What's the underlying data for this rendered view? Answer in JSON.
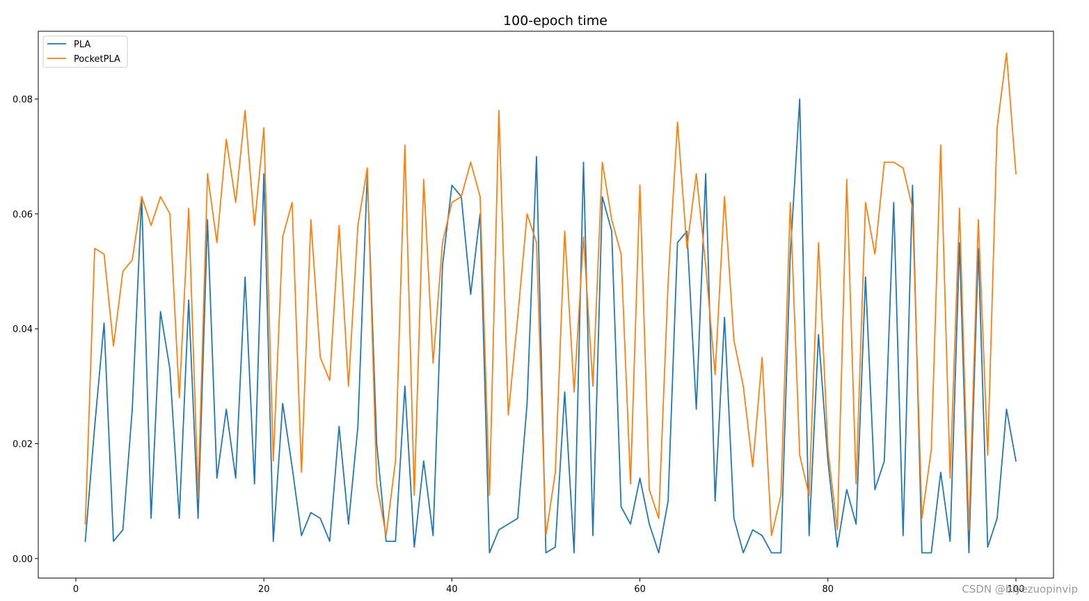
{
  "chart_data": {
    "type": "line",
    "title": "100-epoch time",
    "xlabel": "",
    "ylabel": "",
    "xlim": [
      -4,
      104
    ],
    "ylim": [
      -0.0034,
      0.0918
    ],
    "xticks": [
      0,
      20,
      40,
      60,
      80,
      100
    ],
    "yticks": [
      0.0,
      0.02,
      0.04,
      0.06,
      0.08
    ],
    "ytick_labels": [
      "0.00",
      "0.02",
      "0.04",
      "0.06",
      "0.08"
    ],
    "grid": false,
    "legend_position": "top-left",
    "x": [
      1,
      2,
      3,
      4,
      5,
      6,
      7,
      8,
      9,
      10,
      11,
      12,
      13,
      14,
      15,
      16,
      17,
      18,
      19,
      20,
      21,
      22,
      23,
      24,
      25,
      26,
      27,
      28,
      29,
      30,
      31,
      32,
      33,
      34,
      35,
      36,
      37,
      38,
      39,
      40,
      41,
      42,
      43,
      44,
      45,
      46,
      47,
      48,
      49,
      50,
      51,
      52,
      53,
      54,
      55,
      56,
      57,
      58,
      59,
      60,
      61,
      62,
      63,
      64,
      65,
      66,
      67,
      68,
      69,
      70,
      71,
      72,
      73,
      74,
      75,
      76,
      77,
      78,
      79,
      80,
      81,
      82,
      83,
      84,
      85,
      86,
      87,
      88,
      89,
      90,
      91,
      92,
      93,
      94,
      95,
      96,
      97,
      98,
      99,
      100
    ],
    "series": [
      {
        "name": "PLA",
        "color": "#1f77b4",
        "values": [
          0.003,
          0.023,
          0.041,
          0.003,
          0.005,
          0.026,
          0.063,
          0.007,
          0.043,
          0.033,
          0.007,
          0.045,
          0.007,
          0.059,
          0.014,
          0.026,
          0.014,
          0.049,
          0.013,
          0.067,
          0.003,
          0.027,
          0.016,
          0.004,
          0.008,
          0.007,
          0.003,
          0.023,
          0.006,
          0.023,
          0.067,
          0.02,
          0.003,
          0.003,
          0.03,
          0.002,
          0.017,
          0.004,
          0.051,
          0.065,
          0.063,
          0.046,
          0.06,
          0.001,
          0.005,
          0.006,
          0.007,
          0.027,
          0.07,
          0.001,
          0.002,
          0.029,
          0.001,
          0.069,
          0.004,
          0.063,
          0.057,
          0.009,
          0.006,
          0.014,
          0.006,
          0.001,
          0.01,
          0.055,
          0.057,
          0.026,
          0.067,
          0.01,
          0.042,
          0.007,
          0.001,
          0.005,
          0.004,
          0.001,
          0.001,
          0.053,
          0.08,
          0.004,
          0.039,
          0.017,
          0.002,
          0.012,
          0.006,
          0.049,
          0.012,
          0.017,
          0.062,
          0.004,
          0.065,
          0.001,
          0.001,
          0.015,
          0.003,
          0.055,
          0.001,
          0.054,
          0.002,
          0.007,
          0.026,
          0.017
        ]
      },
      {
        "name": "PocketPLA",
        "color": "#ff7f0e",
        "values": [
          0.006,
          0.054,
          0.053,
          0.037,
          0.05,
          0.052,
          0.063,
          0.058,
          0.063,
          0.06,
          0.028,
          0.061,
          0.011,
          0.067,
          0.055,
          0.073,
          0.062,
          0.078,
          0.058,
          0.075,
          0.017,
          0.056,
          0.062,
          0.015,
          0.059,
          0.035,
          0.031,
          0.058,
          0.03,
          0.058,
          0.068,
          0.013,
          0.004,
          0.017,
          0.072,
          0.011,
          0.066,
          0.034,
          0.055,
          0.062,
          0.063,
          0.069,
          0.063,
          0.011,
          0.078,
          0.025,
          0.042,
          0.06,
          0.055,
          0.004,
          0.015,
          0.057,
          0.029,
          0.056,
          0.03,
          0.069,
          0.059,
          0.053,
          0.013,
          0.065,
          0.012,
          0.007,
          0.048,
          0.076,
          0.054,
          0.067,
          0.051,
          0.032,
          0.063,
          0.038,
          0.03,
          0.016,
          0.035,
          0.004,
          0.011,
          0.062,
          0.018,
          0.011,
          0.055,
          0.019,
          0.005,
          0.066,
          0.013,
          0.062,
          0.053,
          0.069,
          0.069,
          0.068,
          0.061,
          0.007,
          0.019,
          0.072,
          0.014,
          0.061,
          0.005,
          0.059,
          0.018,
          0.075,
          0.088,
          0.067
        ]
      }
    ]
  },
  "watermark": "CSDN @biyezuopinvip"
}
